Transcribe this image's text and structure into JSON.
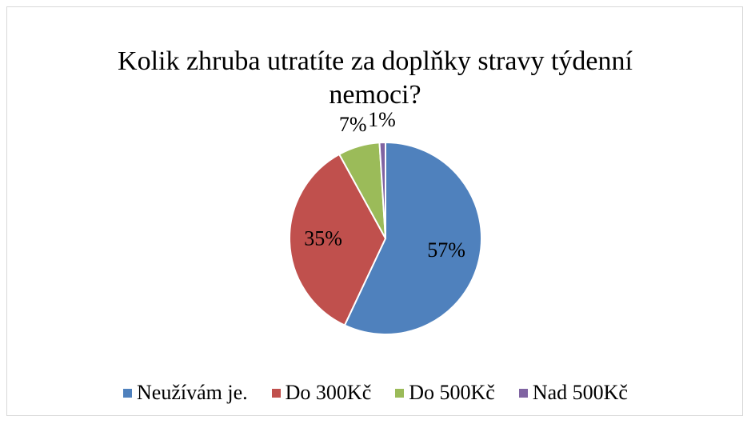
{
  "chart_data": {
    "type": "pie",
    "title": "Kolik zhruba utratíte za doplňky stravy týdenní nemoci?",
    "categories": [
      "Neužívám je.",
      "Do 300Kč",
      "Do 500Kč",
      "Nad 500Kč"
    ],
    "values": [
      57,
      35,
      7,
      1
    ],
    "value_labels": [
      "57%",
      "35%",
      "7%",
      "1%"
    ],
    "colors": [
      "#4f81bd",
      "#c0504d",
      "#9bbb59",
      "#8064a2"
    ],
    "legend": "bottom"
  }
}
